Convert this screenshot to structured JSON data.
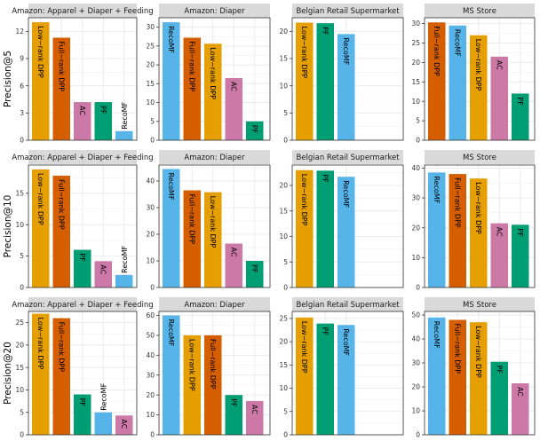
{
  "colors": {
    "Low−rank DPP": "#E69F00",
    "Full−rank DPP": "#D55E00",
    "AC": "#CC79A7",
    "PF": "#009E73",
    "RecoMF": "#56B4E9",
    "strip_bg": "#D9D9D9",
    "grid": "#EBEBEB"
  },
  "chart_data": [
    {
      "type": "bar",
      "row": 0,
      "col": 0,
      "facet": "Amazon: Apparel + Diaper + Feeding",
      "ylabel": "Precision@5",
      "ylim": [
        0,
        13.5
      ],
      "yticks": [
        0,
        3,
        6,
        9,
        12
      ],
      "categories": [
        "Low−rank DPP",
        "Full−rank DPP",
        "AC",
        "PF",
        "RecoMF"
      ],
      "values": [
        13.0,
        11.3,
        4.2,
        4.2,
        1.0
      ]
    },
    {
      "type": "bar",
      "row": 0,
      "col": 1,
      "facet": "Amazon: Diaper",
      "ylabel": "",
      "ylim": [
        0,
        32.5
      ],
      "yticks": [
        0,
        5,
        10,
        15,
        20,
        25,
        30
      ],
      "categories": [
        "RecoMF",
        "Full−rank DPP",
        "Low−rank DPP",
        "AC",
        "PF"
      ],
      "values": [
        31.3,
        27.2,
        25.6,
        16.5,
        5.0
      ]
    },
    {
      "type": "bar",
      "row": 0,
      "col": 2,
      "facet": "Belgian Retail Supermarket",
      "ylabel": "",
      "ylim": [
        0,
        22.5
      ],
      "yticks": [
        0,
        5,
        10,
        15,
        20
      ],
      "categories": [
        "Low−rank DPP",
        "PF",
        "RecoMF"
      ],
      "values": [
        21.6,
        21.5,
        19.5
      ]
    },
    {
      "type": "bar",
      "row": 0,
      "col": 3,
      "facet": "MS Store",
      "ylabel": "",
      "ylim": [
        0,
        31.5
      ],
      "yticks": [
        0,
        5,
        10,
        15,
        20,
        25,
        30
      ],
      "categories": [
        "Full−rank DPP",
        "RecoMF",
        "Low−rank DPP",
        "AC",
        "PF"
      ],
      "values": [
        30.3,
        29.5,
        27.0,
        21.5,
        12.0
      ]
    },
    {
      "type": "bar",
      "row": 1,
      "col": 0,
      "facet": "Amazon: Apparel + Diaper + Feeding",
      "ylabel": "Precision@10",
      "ylim": [
        0,
        19.5
      ],
      "yticks": [
        0,
        5,
        10,
        15
      ],
      "categories": [
        "Low−rank DPP",
        "Full−rank DPP",
        "PF",
        "AC",
        "RecoMF"
      ],
      "values": [
        18.8,
        17.8,
        6.0,
        4.2,
        2.0
      ]
    },
    {
      "type": "bar",
      "row": 1,
      "col": 1,
      "facet": "Amazon: Diaper",
      "ylabel": "",
      "ylim": [
        0,
        46
      ],
      "yticks": [
        0,
        10,
        20,
        30,
        40
      ],
      "categories": [
        "RecoMF",
        "Full−rank DPP",
        "Low−rank DPP",
        "AC",
        "PF"
      ],
      "values": [
        44.5,
        36.5,
        35.8,
        16.5,
        10.0
      ]
    },
    {
      "type": "bar",
      "row": 1,
      "col": 2,
      "facet": "Belgian Retail Supermarket",
      "ylabel": "",
      "ylim": [
        0,
        24
      ],
      "yticks": [
        0,
        5,
        10,
        15,
        20
      ],
      "categories": [
        "Low−rank DPP",
        "PF",
        "RecoMF"
      ],
      "values": [
        23.0,
        22.9,
        21.7
      ]
    },
    {
      "type": "bar",
      "row": 1,
      "col": 3,
      "facet": "MS Store",
      "ylabel": "",
      "ylim": [
        0,
        41
      ],
      "yticks": [
        0,
        10,
        20,
        30,
        40
      ],
      "categories": [
        "RecoMF",
        "Full−rank DPP",
        "Low−rank DPP",
        "AC",
        "PF"
      ],
      "values": [
        38.5,
        38.0,
        36.5,
        21.5,
        21.0
      ]
    },
    {
      "type": "bar",
      "row": 2,
      "col": 0,
      "facet": "Amazon: Apparel + Diaper + Feeding",
      "ylabel": "Precision@20",
      "ylim": [
        0,
        27.5
      ],
      "yticks": [
        0,
        5,
        10,
        15,
        20,
        25
      ],
      "categories": [
        "Low−rank DPP",
        "Full−rank DPP",
        "PF",
        "RecoMF",
        "AC"
      ],
      "values": [
        27.0,
        26.0,
        9.0,
        5.0,
        4.3
      ]
    },
    {
      "type": "bar",
      "row": 2,
      "col": 1,
      "facet": "Amazon: Diaper",
      "ylabel": "",
      "ylim": [
        0,
        62
      ],
      "yticks": [
        0,
        10,
        20,
        30,
        40,
        50,
        60
      ],
      "categories": [
        "RecoMF",
        "Low−rank DPP",
        "Full−rank DPP",
        "PF",
        "AC"
      ],
      "values": [
        60.0,
        50.0,
        50.0,
        20.0,
        17.0
      ]
    },
    {
      "type": "bar",
      "row": 2,
      "col": 2,
      "facet": "Belgian Retail Supermarket",
      "ylabel": "",
      "ylim": [
        0,
        26.5
      ],
      "yticks": [
        0,
        5,
        10,
        15,
        20,
        25
      ],
      "categories": [
        "Low−rank DPP",
        "PF",
        "RecoMF"
      ],
      "values": [
        25.2,
        23.9,
        23.6
      ]
    },
    {
      "type": "bar",
      "row": 2,
      "col": 3,
      "facet": "MS Store",
      "ylabel": "",
      "ylim": [
        0,
        51.5
      ],
      "yticks": [
        0,
        10,
        20,
        30,
        40,
        50
      ],
      "categories": [
        "RecoMF",
        "Full−rank DPP",
        "Low−rank DPP",
        "PF",
        "AC"
      ],
      "values": [
        49.0,
        48.0,
        47.0,
        30.5,
        21.5
      ]
    }
  ]
}
